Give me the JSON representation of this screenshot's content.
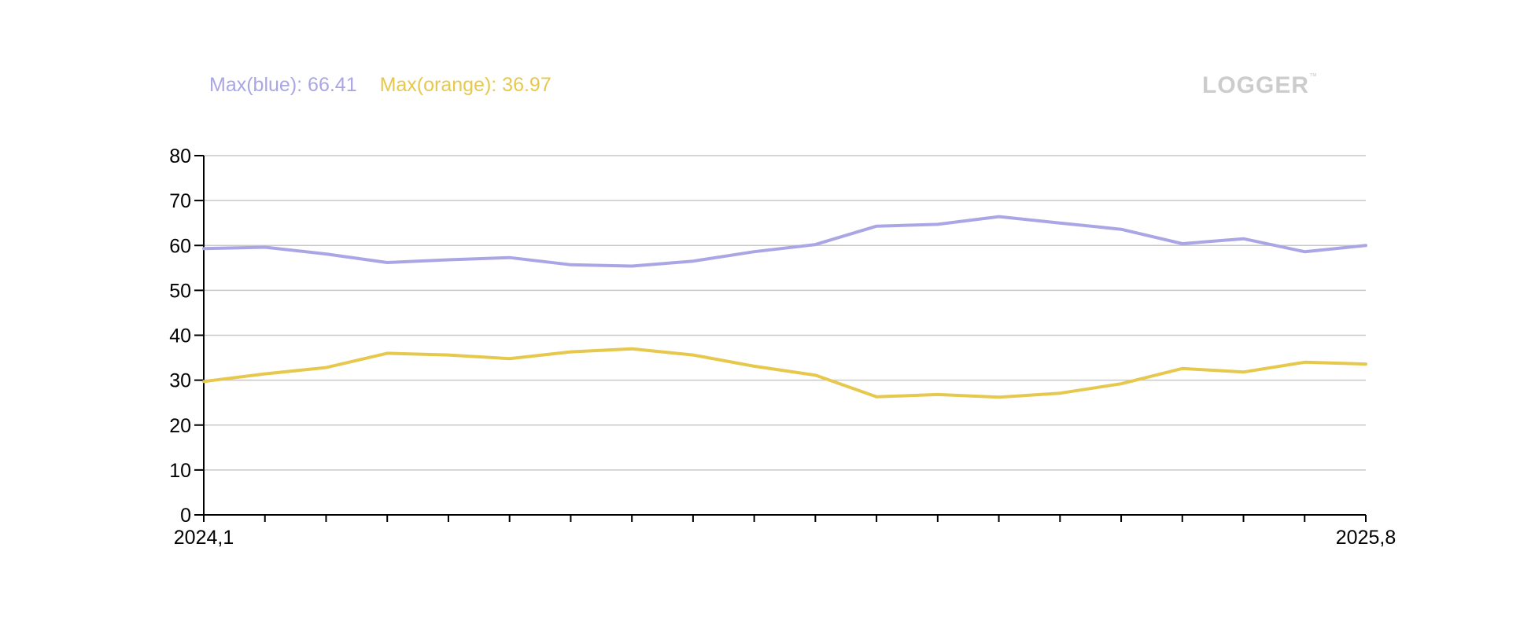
{
  "legend": {
    "blue_label": "Max(blue): 66.41",
    "orange_label": "Max(orange): 36.97"
  },
  "logo": {
    "text": "LOGGER",
    "trademark": "™"
  },
  "colors": {
    "blue": "#aaa6e6",
    "orange": "#e6c84d",
    "grid": "#c8c8c8",
    "axis": "#000000"
  },
  "chart_data": {
    "type": "line",
    "x_start_label": "2024,1",
    "x_end_label": "2025,8",
    "ylim": [
      0,
      80
    ],
    "y_ticks": [
      0,
      10,
      20,
      30,
      40,
      50,
      60,
      70,
      80
    ],
    "grid": true,
    "x_tick_count": 20,
    "series": [
      {
        "name": "blue",
        "color": "#aaa6e6",
        "values": [
          59.3,
          59.6,
          58.1,
          56.2,
          56.8,
          57.3,
          55.7,
          55.4,
          56.5,
          58.6,
          60.2,
          64.3,
          64.7,
          66.41,
          65.0,
          63.6,
          60.4,
          61.5,
          58.6,
          60.0
        ]
      },
      {
        "name": "orange",
        "color": "#e6c84d",
        "values": [
          29.7,
          31.4,
          32.8,
          36.0,
          35.6,
          34.8,
          36.3,
          36.97,
          35.6,
          33.1,
          31.1,
          26.3,
          26.8,
          26.2,
          27.1,
          29.2,
          32.6,
          31.8,
          34.0,
          33.6
        ]
      }
    ]
  }
}
